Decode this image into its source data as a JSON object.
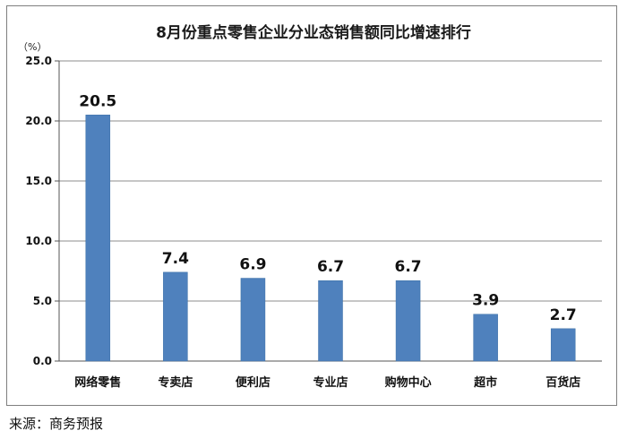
{
  "chart_data": {
    "type": "bar",
    "title": "8月份重点零售企业分业态销售额同比增速排行",
    "unit": "（%）",
    "categories": [
      "网络零售",
      "专卖店",
      "便利店",
      "专业店",
      "购物中心",
      "超市",
      "百货店"
    ],
    "values": [
      20.5,
      7.4,
      6.9,
      6.7,
      6.7,
      3.9,
      2.7
    ],
    "data_labels": [
      "20.5",
      "7.4",
      "6.9",
      "6.7",
      "6.7",
      "3.9",
      "2.7"
    ],
    "yticks": [
      "0.0",
      "5.0",
      "10.0",
      "15.0",
      "20.0",
      "25.0"
    ],
    "ylim": [
      0,
      25
    ],
    "grid": true,
    "bar_color": "#4f81bd",
    "xlabel": "",
    "ylabel": ""
  },
  "source": "来源：商务预报"
}
